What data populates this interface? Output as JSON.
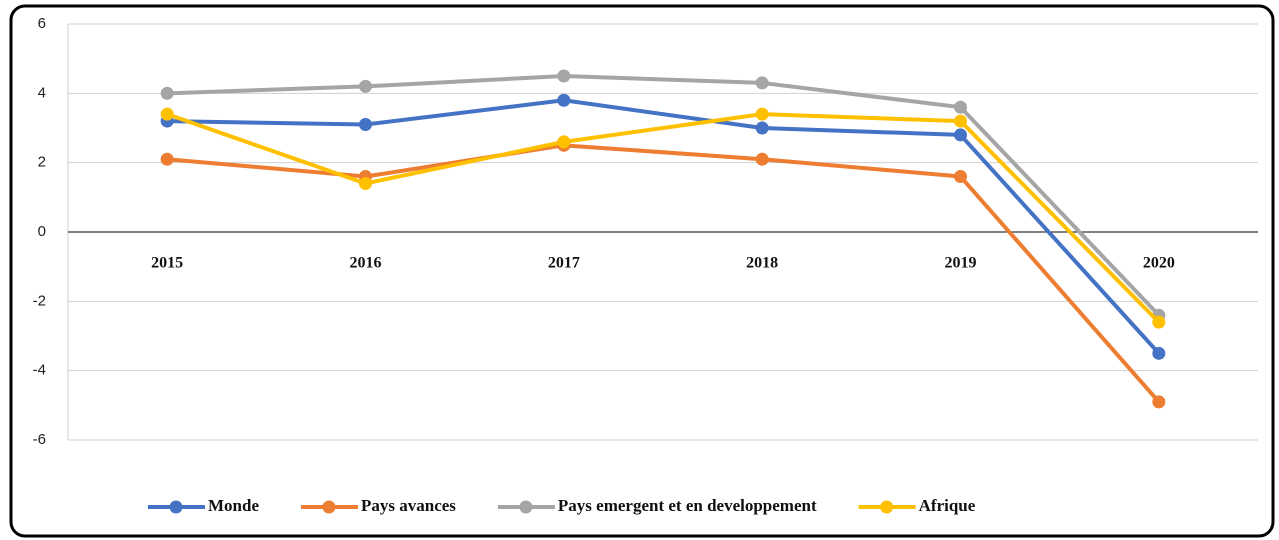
{
  "chart_data": {
    "type": "line",
    "categories": [
      "2015",
      "2016",
      "2017",
      "2018",
      "2019",
      "2020"
    ],
    "series": [
      {
        "name": "Monde",
        "color": "#4472c4",
        "values": [
          3.2,
          3.1,
          3.8,
          3.0,
          2.8,
          -3.5
        ]
      },
      {
        "name": "Pays avances",
        "color": "#ed7d31",
        "values": [
          2.1,
          1.6,
          2.5,
          2.1,
          1.6,
          -4.9
        ]
      },
      {
        "name": "Pays emergent et en developpement",
        "color": "#a5a5a5",
        "values": [
          4.0,
          4.2,
          4.5,
          4.3,
          3.6,
          -2.4
        ]
      },
      {
        "name": "Afrique",
        "color": "#ffc000",
        "values": [
          3.4,
          1.4,
          2.6,
          3.4,
          3.2,
          -2.6
        ]
      }
    ],
    "ylim": [
      -6,
      6
    ],
    "yticks": [
      -6,
      -4,
      -2,
      0,
      2,
      4,
      6
    ],
    "grid": true,
    "legend": "bottom"
  }
}
